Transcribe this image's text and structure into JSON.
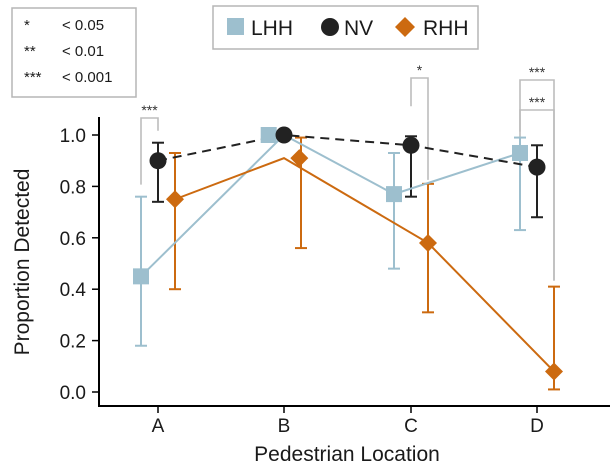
{
  "chart_data": {
    "type": "line",
    "xlabel": "Pedestrian Location",
    "ylabel": "Proportion Detected",
    "categories": [
      "A",
      "B",
      "C",
      "D"
    ],
    "ylim": [
      0,
      1.0
    ],
    "yticks": [
      "0.0",
      "0.2",
      "0.4",
      "0.6",
      "0.8",
      "1.0"
    ],
    "grid": false,
    "legend_position": "top-center",
    "series": [
      {
        "name": "LHH",
        "color": "#9dbfce",
        "marker": "square",
        "line": "solid",
        "values": [
          0.45,
          1.0,
          0.77,
          0.93
        ],
        "err_low": [
          0.18,
          1.0,
          0.48,
          0.63
        ],
        "err_high": [
          0.76,
          1.0,
          0.93,
          0.99
        ]
      },
      {
        "name": "NV",
        "color": "#222222",
        "marker": "circle",
        "line": "dashed",
        "values": [
          0.9,
          1.0,
          0.96,
          0.875
        ],
        "err_low": [
          0.74,
          1.0,
          0.76,
          0.68
        ],
        "err_high": [
          0.97,
          1.0,
          0.995,
          0.96
        ]
      },
      {
        "name": "RHH",
        "color": "#cc6a10",
        "marker": "diamond",
        "line": "solid",
        "values": [
          0.75,
          0.91,
          0.58,
          0.08
        ],
        "err_low": [
          0.4,
          0.56,
          0.31,
          0.01
        ],
        "err_high": [
          0.93,
          0.99,
          0.81,
          0.41
        ]
      }
    ],
    "significance_key": [
      {
        "symbol": "*",
        "label": "< 0.05"
      },
      {
        "symbol": "**",
        "label": "< 0.01"
      },
      {
        "symbol": "***",
        "label": "< 0.001"
      }
    ],
    "annotations": [
      {
        "category": "A",
        "text": "***",
        "between": [
          "LHH",
          "NV"
        ]
      },
      {
        "category": "C",
        "text": "*",
        "between": [
          "NV",
          "RHH"
        ]
      },
      {
        "category": "D",
        "text": "***",
        "between": [
          "NV",
          "RHH"
        ]
      },
      {
        "category": "D",
        "text": "***",
        "between": [
          "LHH",
          "RHH"
        ]
      }
    ]
  }
}
